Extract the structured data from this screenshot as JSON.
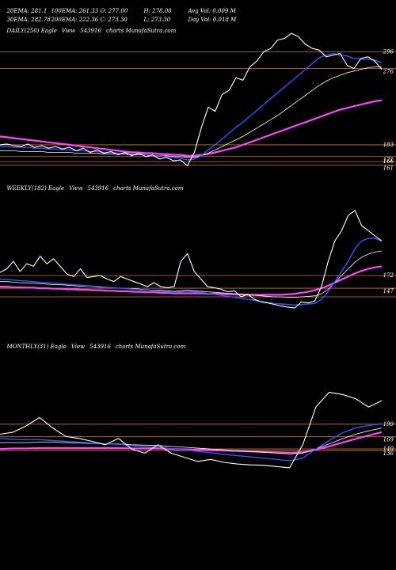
{
  "header": {
    "row1": [
      "20EMA: 281.1",
      "100EMA: 261.33",
      "O: 277.00",
      "H: 278.00",
      "Avg Vol: 0.009 M"
    ],
    "row2": [
      "30EMA: 282.78",
      "200EMA: 222.36",
      "C: 273.30",
      "L: 273.30",
      "Day Vol: 0.018 M"
    ]
  },
  "colors": {
    "price": "#ffffff",
    "ema_fast": "#3355ff",
    "ema_mid": "#ffffff",
    "ema_slow": "#ff44ff",
    "level": "#c8782a"
  },
  "chart_data": [
    {
      "type": "line",
      "title": "DAILY(250) Eagle  View  543916  charts MunafaSutra.com",
      "title_parts": [
        "DAILY(250) Eagle",
        "View",
        "543916",
        "charts MunafaSutra.com"
      ],
      "ylim": [
        150,
        320
      ],
      "levels": [
        {
          "value": 296,
          "label": "296"
        },
        {
          "value": 276,
          "label": "276"
        },
        {
          "value": 185,
          "label": "183"
        },
        {
          "value": 171,
          "label": "171"
        },
        {
          "value": 165,
          "label": "166"
        },
        {
          "value": 161,
          "label": "161"
        }
      ],
      "price": [
        185,
        186,
        184,
        183,
        186,
        182,
        184,
        181,
        183,
        180,
        182,
        178,
        181,
        176,
        179,
        175,
        177,
        173,
        176,
        172,
        175,
        171,
        173,
        168,
        170,
        166,
        167,
        160,
        176,
        205,
        230,
        225,
        245,
        250,
        265,
        262,
        278,
        285,
        296,
        300,
        310,
        312,
        318,
        314,
        305,
        300,
        298,
        290,
        292,
        294,
        280,
        276,
        288,
        290,
        285,
        275
      ],
      "ema_fast": [
        183,
        183,
        182,
        182,
        182,
        181,
        181,
        180,
        180,
        179,
        179,
        178,
        178,
        177,
        177,
        176,
        176,
        175,
        175,
        174,
        174,
        173,
        172,
        172,
        171,
        170,
        169,
        167,
        168,
        172,
        179,
        185,
        192,
        199,
        206,
        212,
        219,
        226,
        233,
        240,
        247,
        254,
        261,
        268,
        275,
        282,
        289,
        292,
        294,
        292,
        291,
        288,
        287,
        287,
        286,
        283
      ],
      "ema_mid": [
        178,
        178,
        178,
        177,
        177,
        177,
        177,
        176,
        176,
        176,
        176,
        175,
        175,
        175,
        175,
        174,
        174,
        174,
        174,
        173,
        173,
        173,
        172,
        172,
        172,
        171,
        171,
        170,
        170,
        172,
        175,
        179,
        183,
        187,
        191,
        195,
        200,
        205,
        210,
        215,
        220,
        226,
        232,
        238,
        244,
        250,
        256,
        261,
        265,
        268,
        271,
        273,
        275,
        277,
        278,
        278
      ],
      "ema_slow": [
        195,
        194,
        193,
        192,
        191,
        190,
        189,
        188,
        187,
        186,
        185,
        184,
        183,
        182,
        181,
        180,
        179,
        178,
        177,
        176,
        176,
        175,
        175,
        174,
        174,
        173,
        173,
        172,
        172,
        173,
        174,
        176,
        178,
        180,
        182,
        185,
        188,
        191,
        194,
        197,
        200,
        203,
        206,
        209,
        212,
        215,
        218,
        221,
        224,
        227,
        229,
        231,
        233,
        235,
        237,
        238
      ]
    },
    {
      "type": "line",
      "title": "WEEKLY(182) Eagle  View  543916  charts MunafaSutra.com",
      "title_parts": [
        "WEEKLY(182) Eagle",
        "View",
        "543916",
        "charts MunafaSutra.com"
      ],
      "ylim": [
        60,
        340
      ],
      "levels": [
        {
          "value": 172,
          "label": "172"
        },
        {
          "value": 147,
          "label": "147"
        },
        {
          "value": 130,
          "label": ""
        }
      ],
      "price": [
        178,
        185,
        200,
        180,
        195,
        190,
        210,
        195,
        205,
        190,
        175,
        170,
        185,
        168,
        170,
        172,
        165,
        160,
        170,
        165,
        160,
        155,
        150,
        158,
        150,
        148,
        150,
        200,
        215,
        180,
        165,
        150,
        148,
        145,
        140,
        142,
        130,
        135,
        125,
        120,
        118,
        115,
        112,
        110,
        108,
        120,
        118,
        122,
        150,
        200,
        240,
        260,
        290,
        300,
        270,
        260,
        250,
        240
      ],
      "ema_fast": [
        165,
        164,
        163,
        162,
        161,
        160,
        159,
        158,
        157,
        156,
        155,
        154,
        153,
        152,
        151,
        150,
        149,
        148,
        147,
        146,
        145,
        144,
        143,
        142,
        141,
        140,
        139,
        140,
        141,
        140,
        139,
        137,
        135,
        133,
        131,
        129,
        127,
        125,
        123,
        121,
        119,
        117,
        116,
        115,
        114,
        115,
        116,
        117,
        125,
        140,
        160,
        180,
        200,
        225,
        240,
        245,
        245,
        240
      ],
      "ema_mid": [
        160,
        160,
        159,
        158,
        157,
        157,
        156,
        155,
        154,
        154,
        153,
        152,
        151,
        151,
        150,
        149,
        149,
        148,
        147,
        146,
        146,
        145,
        144,
        143,
        143,
        142,
        141,
        142,
        143,
        142,
        141,
        140,
        139,
        138,
        137,
        136,
        135,
        134,
        133,
        132,
        131,
        130,
        130,
        129,
        129,
        130,
        131,
        132,
        136,
        145,
        158,
        172,
        185,
        198,
        208,
        214,
        218,
        220
      ],
      "ema_slow": [
        150,
        150,
        149,
        149,
        148,
        148,
        147,
        147,
        146,
        146,
        145,
        145,
        144,
        144,
        143,
        143,
        142,
        142,
        141,
        141,
        140,
        140,
        139,
        139,
        138,
        138,
        137,
        137,
        137,
        137,
        137,
        136,
        136,
        136,
        135,
        135,
        135,
        134,
        134,
        134,
        134,
        134,
        134,
        135,
        136,
        138,
        140,
        143,
        147,
        152,
        158,
        164,
        170,
        176,
        181,
        185,
        188,
        190
      ]
    },
    {
      "type": "line",
      "title": "MONTHLY(31) Eagle  View  543916  charts MunafaSutra.com",
      "title_parts": [
        "MONTHLY(31) Eagle",
        "View",
        "543916",
        "charts MunafaSutra.com"
      ],
      "ylim": [
        40,
        380
      ],
      "levels": [
        {
          "value": 199,
          "label": "199"
        },
        {
          "value": 169,
          "label": "169"
        },
        {
          "value": 140,
          "label": "140"
        },
        {
          "value": 136,
          "label": "136"
        }
      ],
      "price": [
        175,
        180,
        195,
        215,
        190,
        170,
        165,
        158,
        150,
        165,
        140,
        130,
        150,
        130,
        120,
        110,
        115,
        108,
        104,
        102,
        101,
        98,
        95,
        150,
        240,
        275,
        270,
        260,
        240,
        255
      ],
      "ema_fast": [
        165,
        163,
        162,
        162,
        160,
        158,
        156,
        154,
        152,
        151,
        148,
        145,
        144,
        141,
        138,
        134,
        131,
        127,
        124,
        121,
        118,
        115,
        112,
        118,
        140,
        160,
        178,
        190,
        196,
        200
      ],
      "ema_mid": [
        155,
        155,
        155,
        156,
        156,
        155,
        154,
        153,
        152,
        152,
        150,
        149,
        148,
        146,
        144,
        142,
        140,
        138,
        136,
        134,
        132,
        130,
        128,
        130,
        140,
        152,
        164,
        175,
        183,
        190
      ],
      "ema_slow": [
        140,
        141,
        141,
        142,
        142,
        142,
        142,
        142,
        142,
        142,
        141,
        141,
        141,
        140,
        139,
        138,
        137,
        136,
        135,
        134,
        133,
        132,
        131,
        132,
        138,
        146,
        155,
        164,
        172,
        180
      ]
    }
  ]
}
